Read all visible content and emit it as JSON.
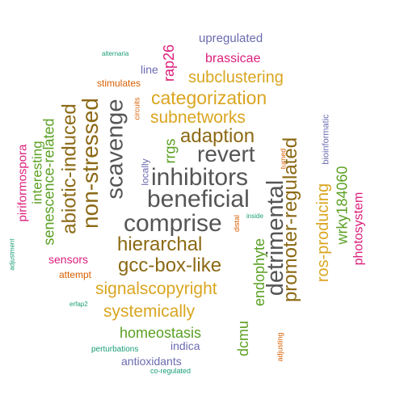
{
  "colors": {
    "gray": "#555555",
    "gold": "#DAA520",
    "brown": "#8B6914",
    "green": "#5BA023",
    "magenta": "#DB1F7C",
    "orange": "#D95F02",
    "purple": "#6B6BB0",
    "teal": "#1B9E77"
  },
  "words": [
    {
      "text": "beneficial",
      "color": "gray",
      "weight": 30
    },
    {
      "text": "comprise",
      "color": "gray",
      "weight": 30
    },
    {
      "text": "inhibitors",
      "color": "gray",
      "weight": 30
    },
    {
      "text": "scavenge",
      "color": "gray",
      "weight": 29
    },
    {
      "text": "detrimental",
      "color": "gray",
      "weight": 29
    },
    {
      "text": "revert",
      "color": "gray",
      "weight": 28
    },
    {
      "text": "non-stressed",
      "color": "brown",
      "weight": 28
    },
    {
      "text": "abiotic-induced",
      "color": "brown",
      "weight": 24
    },
    {
      "text": "promoter-regulated",
      "color": "brown",
      "weight": 24
    },
    {
      "text": "adaption",
      "color": "brown",
      "weight": 24
    },
    {
      "text": "gcc-box-like",
      "color": "brown",
      "weight": 24
    },
    {
      "text": "hierarchal",
      "color": "brown",
      "weight": 24
    },
    {
      "text": "categorization",
      "color": "gold",
      "weight": 23
    },
    {
      "text": "subnetworks",
      "color": "gold",
      "weight": 21
    },
    {
      "text": "signalscopyright",
      "color": "gold",
      "weight": 21
    },
    {
      "text": "systemically",
      "color": "gold",
      "weight": 21
    },
    {
      "text": "subclustering",
      "color": "gold",
      "weight": 20
    },
    {
      "text": "ros-producing",
      "color": "gold",
      "weight": 20
    },
    {
      "text": "senescence-related",
      "color": "green",
      "weight": 18
    },
    {
      "text": "endophyte",
      "color": "green",
      "weight": 18
    },
    {
      "text": "wrky184060",
      "color": "green",
      "weight": 18
    },
    {
      "text": "homeostasis",
      "color": "green",
      "weight": 18
    },
    {
      "text": "dcmu",
      "color": "green",
      "weight": 18
    },
    {
      "text": "rrgs",
      "color": "green",
      "weight": 18
    },
    {
      "text": "interesting",
      "color": "green",
      "weight": 17
    },
    {
      "text": "photosystem",
      "color": "magenta",
      "weight": 16
    },
    {
      "text": "rap26",
      "color": "magenta",
      "weight": 18
    },
    {
      "text": "brassicae",
      "color": "magenta",
      "weight": 16
    },
    {
      "text": "piriformospora",
      "color": "magenta",
      "weight": 15
    },
    {
      "text": "sensors",
      "color": "magenta",
      "weight": 14
    },
    {
      "text": "upregulated",
      "color": "purple",
      "weight": 15
    },
    {
      "text": "indica",
      "color": "purple",
      "weight": 14
    },
    {
      "text": "antioxidants",
      "color": "purple",
      "weight": 14
    },
    {
      "text": "line",
      "color": "purple",
      "weight": 14
    },
    {
      "text": "locally",
      "color": "purple",
      "weight": 12
    },
    {
      "text": "bioinformatic",
      "color": "purple",
      "weight": 11
    },
    {
      "text": "stimulates",
      "color": "orange",
      "weight": 12
    },
    {
      "text": "attempt",
      "color": "orange",
      "weight": 12
    },
    {
      "text": "circuits",
      "color": "orange",
      "weight": 9
    },
    {
      "text": "turned",
      "color": "orange",
      "weight": 9
    },
    {
      "text": "distal",
      "color": "orange",
      "weight": 9
    },
    {
      "text": "adjusting",
      "color": "orange",
      "weight": 9
    },
    {
      "text": "alternaria",
      "color": "teal",
      "weight": 8
    },
    {
      "text": "adjustment",
      "color": "teal",
      "weight": 8
    },
    {
      "text": "erfap2",
      "color": "teal",
      "weight": 8
    },
    {
      "text": "perturbations",
      "color": "teal",
      "weight": 10
    },
    {
      "text": "co-regulated",
      "color": "teal",
      "weight": 9
    },
    {
      "text": "inside",
      "color": "teal",
      "weight": 8
    }
  ]
}
